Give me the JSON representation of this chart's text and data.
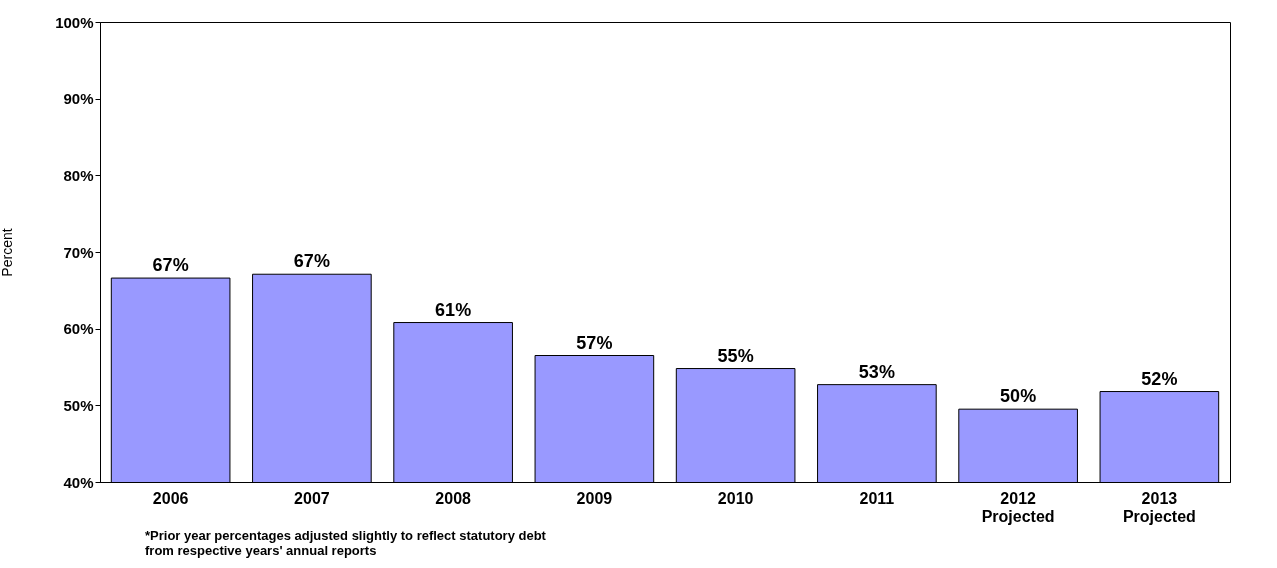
{
  "chart_data": {
    "type": "bar",
    "ylabel": "Percent",
    "categories": [
      "2006",
      "2007",
      "2008",
      "2009",
      "2010",
      "2011",
      "2012\nProjected",
      "2013\nProjected"
    ],
    "values": [
      66.6,
      67.1,
      60.8,
      56.5,
      54.8,
      52.7,
      49.5,
      51.8
    ],
    "value_labels": [
      "67%",
      "67%",
      "61%",
      "57%",
      "55%",
      "53%",
      "50%",
      "52%"
    ],
    "color": "#9999ff",
    "ylim": [
      40,
      100
    ],
    "yticks": [
      {
        "value": 40,
        "label": "40%"
      },
      {
        "value": 50,
        "label": "50%"
      },
      {
        "value": 60,
        "label": "60%"
      },
      {
        "value": 70,
        "label": "70%"
      },
      {
        "value": 80,
        "label": "80%"
      },
      {
        "value": 90,
        "label": "90%"
      },
      {
        "value": 100,
        "label": "100%"
      }
    ],
    "grid": false,
    "annotations": [
      "*Prior year percentages adjusted slightly to reflect statutory debt\nfrom respective years' annual reports"
    ]
  }
}
